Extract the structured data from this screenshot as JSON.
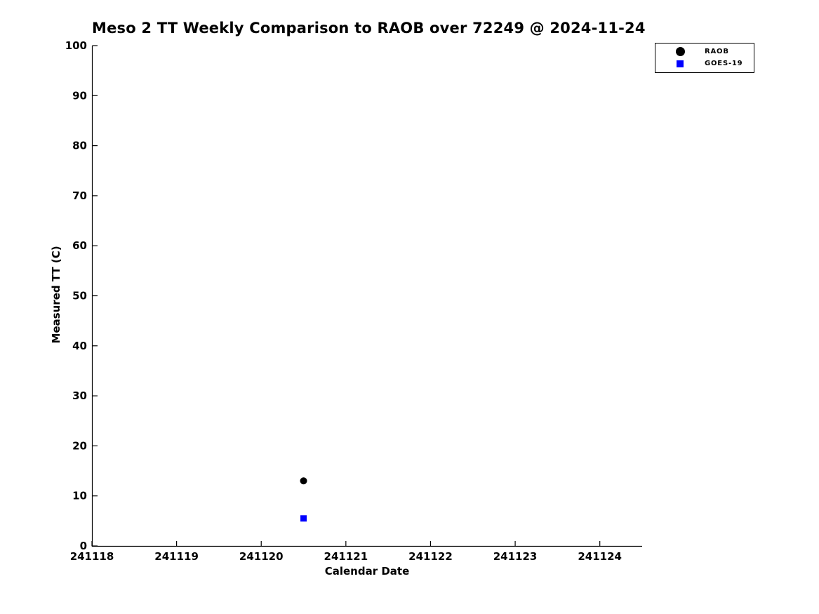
{
  "figure": {
    "background": "#ffffff",
    "axis_color": "#000000"
  },
  "chart_data": {
    "type": "scatter",
    "title": "Meso 2 TT Weekly Comparison to RAOB over 72249 @ 2024-11-24",
    "xlabel": "Calendar Date",
    "ylabel": "Measured TT (C)",
    "xlim": [
      241118,
      241124.5
    ],
    "ylim": [
      0,
      100
    ],
    "x_ticks": [
      241118,
      241119,
      241120,
      241121,
      241122,
      241123,
      241124
    ],
    "y_ticks": [
      0,
      10,
      20,
      30,
      40,
      50,
      60,
      70,
      80,
      90,
      100
    ],
    "grid": false,
    "legend_position": "top-right",
    "legend": {
      "entries": [
        {
          "label": "RAOB",
          "marker": "circle",
          "color": "#000000"
        },
        {
          "label": "GOES-19",
          "marker": "square",
          "color": "#0000ff"
        }
      ]
    },
    "series": [
      {
        "name": "RAOB",
        "marker": "circle",
        "color": "#000000",
        "points": [
          {
            "x": 241120.5,
            "y": 13
          }
        ]
      },
      {
        "name": "GOES-19",
        "marker": "square",
        "color": "#0000ff",
        "points": [
          {
            "x": 241120.5,
            "y": 5.5
          }
        ]
      }
    ]
  }
}
